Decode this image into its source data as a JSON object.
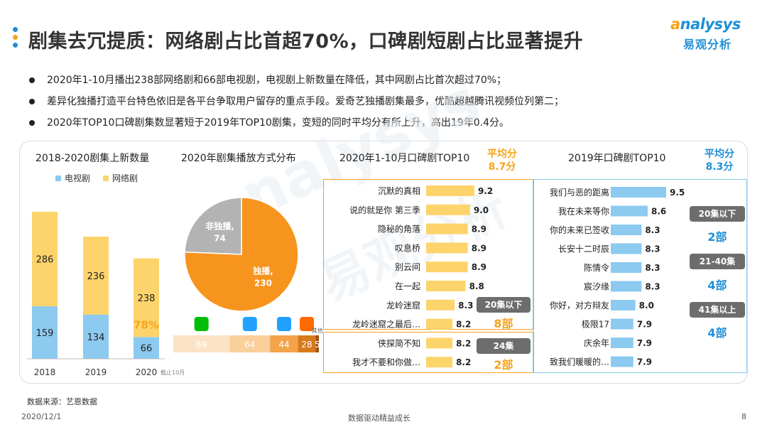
{
  "header": {
    "title": "剧集去冗提质：网络剧占比首超70%，口碑剧短剧占比显著提升",
    "dot_colors": [
      "#1f8fd6",
      "#f7a21b",
      "#1f8fd6"
    ],
    "logo_en": "nalysys",
    "logo_en_a": "a",
    "logo_cn": "易观分析"
  },
  "bullets": [
    "2020年1-10月播出238部网络剧和66部电视剧，电视剧上新数量在降低，其中网剧占比首次超过70%；",
    "差异化独播打造平台特色依旧是各平台争取用户留存的重点手段。爱奇艺独播剧集最多，优酷超越腾讯视频位列第二；",
    "2020年TOP10口碑剧集数显著短于2019年TOP10剧集，变短的同时平均分有所上升，高出19年0.4分。"
  ],
  "watermark": "易观分析",
  "watermark_en": "nalysys",
  "chart_data": [
    {
      "type": "bar",
      "title": "2018-2020剧集上新数量",
      "stacked": true,
      "categories": [
        "2018",
        "2019",
        "2020"
      ],
      "series": [
        {
          "name": "电视剧",
          "color": "#8ccaf0",
          "values": [
            159,
            134,
            66
          ]
        },
        {
          "name": "网络剧",
          "color": "#fdd46c",
          "values": [
            286,
            236,
            238
          ]
        }
      ],
      "annotations": [
        {
          "category": "2020",
          "text": "78%",
          "color": "#f7a21b"
        }
      ],
      "x_note": {
        "category": "2020",
        "text": "截止10月"
      },
      "legend": "top-left"
    },
    {
      "type": "pie",
      "title": "2020年剧集播放方式分布",
      "slices": [
        {
          "label": "独播,",
          "value": 230,
          "color": "#f7941d"
        },
        {
          "label": "非独播,",
          "value": 74,
          "color": "#b3b3b3"
        }
      ],
      "platform_bar": {
        "segments": [
          {
            "icon": "iqiyi-icon",
            "value": 89,
            "color": "#fbe3c8"
          },
          {
            "icon": "youku-icon",
            "value": 64,
            "color": "#f9cf9a"
          },
          {
            "icon": "tencent-video-icon",
            "value": 44,
            "color": "#f3a34a"
          },
          {
            "icon": "mango-tv-icon",
            "value": 28,
            "color": "#d77a1b"
          },
          {
            "icon": "",
            "value": 5,
            "color": "#9a5410",
            "label": "其他"
          }
        ]
      }
    },
    {
      "type": "bar",
      "orientation": "horizontal",
      "title": "2020年1-10月口碑剧TOP10",
      "avg_label": "平均分",
      "avg_value": "8.7分",
      "categories": [
        "沉默的真相",
        "说的就是你 第三季",
        "隐秘的角落",
        "叹息桥",
        "别云间",
        "在一起",
        "龙岭迷窟",
        "龙岭迷窟之最后…",
        "侠探简不知",
        "我才不要和你做…"
      ],
      "values": [
        9.2,
        9.0,
        8.9,
        8.9,
        8.9,
        8.8,
        8.3,
        8.2,
        8.2,
        8.2
      ],
      "bar_color": "#fdd46c",
      "groups": [
        {
          "label": "20集以下",
          "count": "8部"
        },
        {
          "label": "24集",
          "count": "2部"
        }
      ]
    },
    {
      "type": "bar",
      "orientation": "horizontal",
      "title": "2019年口碑剧TOP10",
      "avg_label": "平均分",
      "avg_value": "8.3分",
      "categories": [
        "我们与恶的距离",
        "我在未来等你",
        "你的未来已签收",
        "长安十二时辰",
        "陈情令",
        "宸汐缘",
        "你好，对方辩友",
        "极限17",
        "庆余年",
        "致我们暖暖的…"
      ],
      "values": [
        9.5,
        8.6,
        8.3,
        8.3,
        8.3,
        8.3,
        8.0,
        7.9,
        7.9,
        7.9
      ],
      "bar_color": "#8ccaf0",
      "groups": [
        {
          "label": "20集以下",
          "count": "2部"
        },
        {
          "label": "21-40集",
          "count": "4部"
        },
        {
          "label": "41集以上",
          "count": "4部"
        }
      ]
    }
  ],
  "footer": {
    "source": "数据来源：艺恩数据",
    "date": "2020/12/1",
    "slogan": "数据驱动精益成长",
    "page": "8"
  }
}
